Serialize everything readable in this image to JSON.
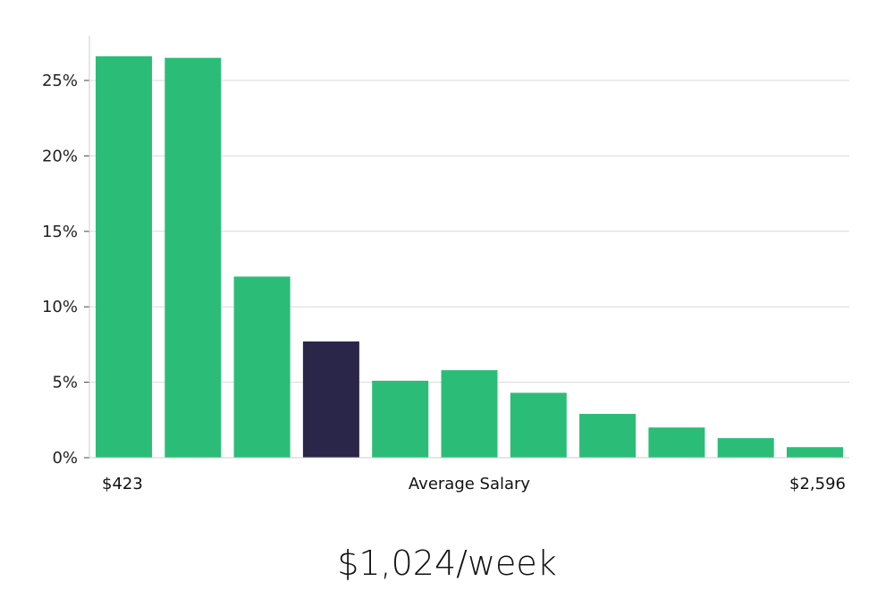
{
  "chart_data": {
    "type": "bar",
    "xlabel": "Average Salary",
    "x_range_labels": [
      "$423",
      "$2,596"
    ],
    "values": [
      26.6,
      26.5,
      12.0,
      7.7,
      5.1,
      5.8,
      4.3,
      2.9,
      2.0,
      1.3,
      0.7
    ],
    "highlight_index": 3,
    "ylim": [
      0,
      28
    ],
    "yticks": [
      0,
      5,
      10,
      15,
      20,
      25
    ],
    "ytick_labels": [
      "0%",
      "5%",
      "10%",
      "15%",
      "20%",
      "25%"
    ],
    "grid": true,
    "colors": {
      "bar": "#2bbd77",
      "highlight": "#29264a",
      "grid": "#d9d9d9",
      "axis": "#cccccc"
    }
  },
  "caption": "$1,024/week"
}
